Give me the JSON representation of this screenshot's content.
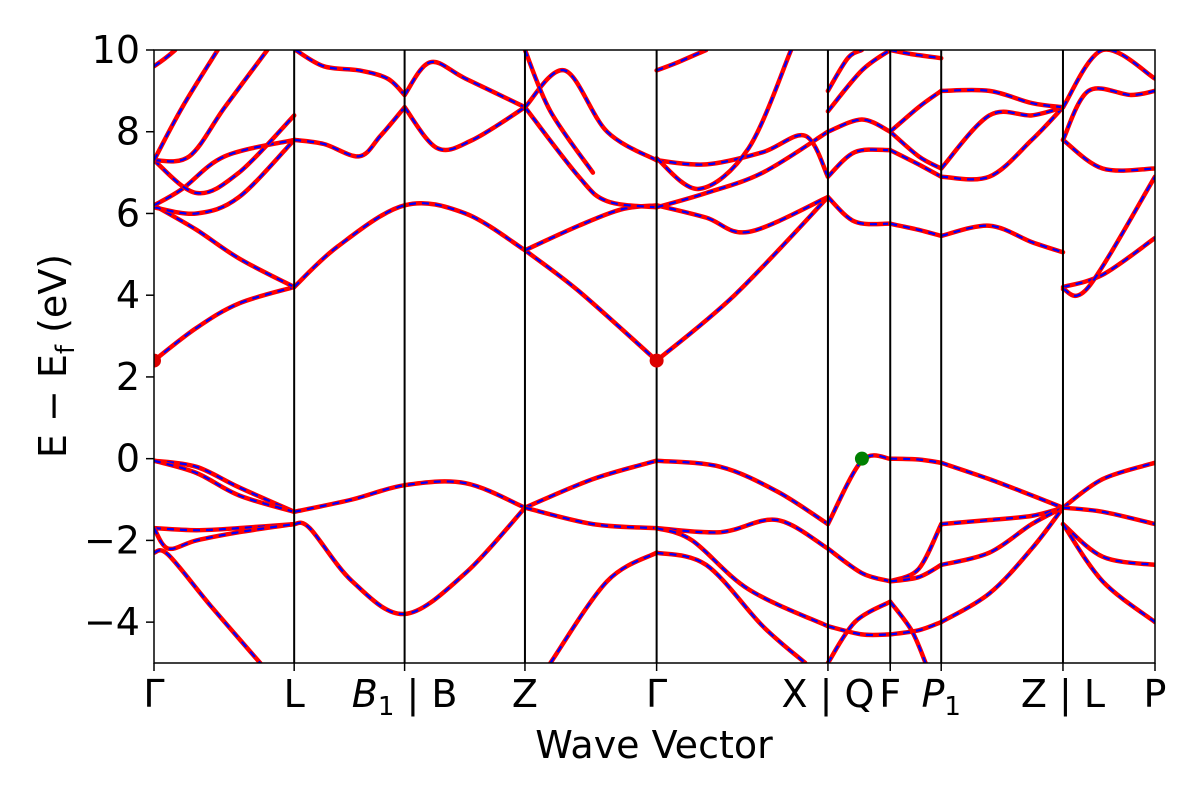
{
  "chart_data": {
    "type": "line",
    "title": "",
    "xlabel": "Wave Vector",
    "ylabel": "E − E",
    "ylabel_sub": "f",
    "ylabel_suffix": " (eV)",
    "ylim": [
      -5,
      10
    ],
    "yticks": [
      -4,
      -2,
      0,
      2,
      4,
      6,
      8,
      10
    ],
    "ytick_labels": [
      "−4",
      "−2",
      "0",
      "2",
      "4",
      "6",
      "8",
      "10"
    ],
    "xlim": [
      0,
      7.07
    ],
    "xticks": [
      {
        "x": 0.0,
        "label": "Γ"
      },
      {
        "x": 0.99,
        "label": "L"
      },
      {
        "x": 1.77,
        "label": "B",
        "sub": "1",
        "italic": true,
        "suffix": " | B"
      },
      {
        "x": 2.62,
        "label": "Z"
      },
      {
        "x": 3.55,
        "label": "Γ"
      },
      {
        "x": 4.76,
        "label": "X | Q"
      },
      {
        "x": 5.2,
        "label": "F"
      },
      {
        "x": 5.56,
        "label": "P",
        "sub": "1",
        "italic": true
      },
      {
        "x": 6.42,
        "label": "Z | L"
      },
      {
        "x": 7.07,
        "label": "P"
      }
    ],
    "grid": false,
    "colors": {
      "band_solid": "#ff0000",
      "band_dash": "#0000ff",
      "cbm_marker": "#dd0000",
      "vbm_marker": "#008000",
      "vline": "#000000"
    },
    "markers": [
      {
        "name": "CBM",
        "x": 0.0,
        "y": 2.4,
        "color": "#dd0000"
      },
      {
        "name": "CBM",
        "x": 3.55,
        "y": 2.4,
        "color": "#dd0000"
      },
      {
        "name": "VBM",
        "x": 5.0,
        "y": 0.0,
        "color": "#008000"
      }
    ],
    "series": [
      {
        "x": [
          0,
          0.3,
          0.6,
          0.99
        ],
        "y": [
          2.4,
          3.2,
          3.8,
          4.2
        ]
      },
      {
        "x": [
          0,
          0.3,
          0.6,
          0.99
        ],
        "y": [
          6.2,
          5.6,
          4.9,
          4.2
        ]
      },
      {
        "x": [
          0,
          0.3,
          0.6,
          0.99
        ],
        "y": [
          6.15,
          6.0,
          6.4,
          7.8
        ]
      },
      {
        "x": [
          0,
          0.2,
          0.5,
          0.99
        ],
        "y": [
          6.2,
          6.6,
          7.4,
          7.8
        ]
      },
      {
        "x": [
          0,
          0.3,
          0.6,
          0.99
        ],
        "y": [
          7.3,
          6.5,
          7.0,
          8.4
        ]
      },
      {
        "x": [
          0,
          0.25,
          0.5,
          0.8
        ],
        "y": [
          7.3,
          7.4,
          8.6,
          10.0
        ]
      },
      {
        "x": [
          0,
          0.2,
          0.45
        ],
        "y": [
          7.3,
          8.6,
          10.0
        ]
      },
      {
        "x": [
          0,
          0.08,
          0.15
        ],
        "y": [
          9.6,
          9.8,
          10.0
        ]
      },
      {
        "x": [
          0,
          0.3,
          0.6,
          0.99
        ],
        "y": [
          -0.05,
          -0.2,
          -0.7,
          -1.3
        ]
      },
      {
        "x": [
          0,
          0.3,
          0.6,
          0.99
        ],
        "y": [
          -0.05,
          -0.35,
          -0.9,
          -1.3
        ]
      },
      {
        "x": [
          0,
          0.3,
          0.6,
          0.99
        ],
        "y": [
          -1.7,
          -1.75,
          -1.7,
          -1.6
        ]
      },
      {
        "x": [
          0,
          0.1,
          0.3,
          0.6,
          0.99
        ],
        "y": [
          -1.7,
          -2.2,
          -2.0,
          -1.8,
          -1.6
        ]
      },
      {
        "x": [
          0,
          0.1,
          0.4,
          0.75
        ],
        "y": [
          -2.3,
          -2.35,
          -3.6,
          -5.0
        ]
      },
      {
        "x": [
          0.99,
          1.3,
          1.77,
          2.2,
          2.62
        ],
        "y": [
          4.2,
          5.2,
          6.2,
          6.0,
          5.1
        ]
      },
      {
        "x": [
          0.99,
          1.2,
          1.45,
          1.6,
          1.77
        ],
        "y": [
          7.8,
          7.7,
          7.4,
          7.9,
          8.6
        ]
      },
      {
        "x": [
          1.77,
          2.0,
          2.25,
          2.62
        ],
        "y": [
          8.6,
          7.6,
          7.8,
          8.6
        ]
      },
      {
        "x": [
          1.0,
          1.2,
          1.45,
          1.65,
          1.77
        ],
        "y": [
          10.0,
          9.6,
          9.5,
          9.3,
          8.9
        ]
      },
      {
        "x": [
          1.77,
          1.95,
          2.2,
          2.62
        ],
        "y": [
          8.9,
          9.7,
          9.3,
          8.6
        ]
      },
      {
        "x": [
          0.99,
          1.4,
          1.77,
          2.2,
          2.62
        ],
        "y": [
          -1.3,
          -1.0,
          -0.65,
          -0.6,
          -1.2
        ]
      },
      {
        "x": [
          0.99,
          1.1,
          1.4,
          1.77,
          2.2,
          2.62
        ],
        "y": [
          -1.6,
          -1.7,
          -3.0,
          -3.8,
          -2.8,
          -1.2
        ]
      },
      {
        "x": [
          2.62,
          3.0,
          3.55
        ],
        "y": [
          5.1,
          4.1,
          2.4
        ]
      },
      {
        "x": [
          2.62,
          3.0,
          3.3,
          3.55
        ],
        "y": [
          5.1,
          5.7,
          6.1,
          6.2
        ]
      },
      {
        "x": [
          2.62,
          3.0,
          3.2,
          3.55
        ],
        "y": [
          8.6,
          6.9,
          6.3,
          6.15
        ]
      },
      {
        "x": [
          2.62,
          2.9,
          3.2,
          3.55
        ],
        "y": [
          8.6,
          9.5,
          8.0,
          7.3
        ]
      },
      {
        "x": [
          2.62,
          2.8,
          3.1
        ],
        "y": [
          10.0,
          8.5,
          7.0
        ]
      },
      {
        "x": [
          2.62,
          3.1,
          3.55
        ],
        "y": [
          -1.2,
          -0.5,
          -0.05
        ]
      },
      {
        "x": [
          2.62,
          3.1,
          3.55
        ],
        "y": [
          -1.2,
          -1.6,
          -1.7
        ]
      },
      {
        "x": [
          2.8,
          3.2,
          3.55
        ],
        "y": [
          -5.0,
          -3.0,
          -2.3
        ]
      },
      {
        "x": [
          3.55,
          4.1,
          4.76
        ],
        "y": [
          2.4,
          4.0,
          6.4
        ]
      },
      {
        "x": [
          3.55,
          3.9,
          4.2,
          4.76
        ],
        "y": [
          6.2,
          5.9,
          5.55,
          6.4
        ]
      },
      {
        "x": [
          3.55,
          3.9,
          4.3,
          4.76
        ],
        "y": [
          6.15,
          6.5,
          7.0,
          8.0
        ]
      },
      {
        "x": [
          3.55,
          3.9,
          4.3,
          4.6,
          4.76
        ],
        "y": [
          7.3,
          7.2,
          7.5,
          7.9,
          6.9
        ]
      },
      {
        "x": [
          3.55,
          3.85,
          4.2,
          4.5
        ],
        "y": [
          7.35,
          6.6,
          7.6,
          10.0
        ]
      },
      {
        "x": [
          3.55,
          3.7,
          3.9
        ],
        "y": [
          9.5,
          9.7,
          10.0
        ]
      },
      {
        "x": [
          3.55,
          4.0,
          4.4,
          4.76
        ],
        "y": [
          -0.05,
          -0.2,
          -0.8,
          -1.6
        ]
      },
      {
        "x": [
          3.55,
          4.0,
          4.4,
          4.76
        ],
        "y": [
          -1.7,
          -1.8,
          -1.5,
          -2.2
        ]
      },
      {
        "x": [
          3.55,
          3.8,
          4.2,
          4.76
        ],
        "y": [
          -1.7,
          -2.0,
          -3.2,
          -4.1
        ]
      },
      {
        "x": [
          3.55,
          3.9,
          4.3,
          4.6
        ],
        "y": [
          -2.3,
          -2.6,
          -4.1,
          -5.0
        ]
      },
      {
        "x": [
          4.76,
          4.95,
          5.2
        ],
        "y": [
          6.4,
          5.8,
          5.75
        ]
      },
      {
        "x": [
          4.76,
          4.95,
          5.2
        ],
        "y": [
          6.9,
          7.5,
          7.55
        ]
      },
      {
        "x": [
          4.76,
          5.0,
          5.2
        ],
        "y": [
          8.0,
          8.3,
          8.0
        ]
      },
      {
        "x": [
          4.76,
          5.0,
          5.2
        ],
        "y": [
          8.5,
          9.5,
          10.0
        ]
      },
      {
        "x": [
          4.76,
          4.9,
          5.0
        ],
        "y": [
          9.0,
          9.8,
          10.0
        ]
      },
      {
        "x": [
          4.76,
          5.0,
          5.2
        ],
        "y": [
          -1.6,
          -0.05,
          0.0
        ]
      },
      {
        "x": [
          4.76,
          5.0,
          5.2
        ],
        "y": [
          -2.2,
          -2.8,
          -3.0
        ]
      },
      {
        "x": [
          4.76,
          5.0,
          5.2
        ],
        "y": [
          -4.1,
          -4.3,
          -4.3
        ]
      },
      {
        "x": [
          4.76,
          4.95,
          5.2
        ],
        "y": [
          -5.0,
          -4.0,
          -3.5
        ]
      },
      {
        "x": [
          5.2,
          5.4,
          5.56
        ],
        "y": [
          5.75,
          5.6,
          5.45
        ]
      },
      {
        "x": [
          5.2,
          5.4,
          5.56
        ],
        "y": [
          7.55,
          7.2,
          6.9
        ]
      },
      {
        "x": [
          5.2,
          5.4,
          5.56
        ],
        "y": [
          8.0,
          7.4,
          7.1
        ]
      },
      {
        "x": [
          5.2,
          5.4,
          5.56
        ],
        "y": [
          8.0,
          8.6,
          9.0
        ]
      },
      {
        "x": [
          5.2,
          5.35,
          5.56
        ],
        "y": [
          10.0,
          9.9,
          9.8
        ]
      },
      {
        "x": [
          5.2,
          5.4,
          5.56
        ],
        "y": [
          0.0,
          -0.02,
          -0.1
        ]
      },
      {
        "x": [
          5.2,
          5.4,
          5.56
        ],
        "y": [
          -3.0,
          -2.7,
          -1.6
        ]
      },
      {
        "x": [
          5.2,
          5.4,
          5.56
        ],
        "y": [
          -3.0,
          -2.9,
          -2.6
        ]
      },
      {
        "x": [
          5.2,
          5.4,
          5.56
        ],
        "y": [
          -4.3,
          -4.2,
          -4.0
        ]
      },
      {
        "x": [
          5.2,
          5.35,
          5.45
        ],
        "y": [
          -3.5,
          -4.2,
          -5.0
        ]
      },
      {
        "x": [
          5.56,
          5.9,
          6.2,
          6.42
        ],
        "y": [
          5.45,
          5.7,
          5.3,
          5.05
        ]
      },
      {
        "x": [
          5.56,
          5.9,
          6.2,
          6.42
        ],
        "y": [
          6.9,
          6.9,
          7.8,
          8.6
        ]
      },
      {
        "x": [
          5.56,
          5.9,
          6.2,
          6.42
        ],
        "y": [
          7.1,
          8.4,
          8.4,
          8.6
        ]
      },
      {
        "x": [
          5.56,
          5.9,
          6.2,
          6.42
        ],
        "y": [
          9.0,
          9.0,
          8.7,
          8.6
        ]
      },
      {
        "x": [
          5.56,
          5.9,
          6.2,
          6.42
        ],
        "y": [
          -0.1,
          -0.5,
          -0.9,
          -1.2
        ]
      },
      {
        "x": [
          5.56,
          5.9,
          6.2,
          6.42
        ],
        "y": [
          -1.6,
          -1.5,
          -1.4,
          -1.2
        ]
      },
      {
        "x": [
          5.56,
          5.9,
          6.2,
          6.42
        ],
        "y": [
          -2.6,
          -2.3,
          -1.6,
          -1.2
        ]
      },
      {
        "x": [
          5.56,
          5.9,
          6.2,
          6.42
        ],
        "y": [
          -4.0,
          -3.3,
          -2.2,
          -1.2
        ]
      },
      {
        "x": [
          6.42,
          6.7,
          7.07
        ],
        "y": [
          4.2,
          4.5,
          5.4
        ]
      },
      {
        "x": [
          6.42,
          6.6,
          7.07
        ],
        "y": [
          4.15,
          4.2,
          6.9
        ]
      },
      {
        "x": [
          6.42,
          6.7,
          7.07
        ],
        "y": [
          7.8,
          7.1,
          7.1
        ]
      },
      {
        "x": [
          6.42,
          6.6,
          6.9,
          7.07
        ],
        "y": [
          7.8,
          9.0,
          8.9,
          9.0
        ]
      },
      {
        "x": [
          6.42,
          6.7,
          7.07
        ],
        "y": [
          8.6,
          10.0,
          9.3
        ]
      },
      {
        "x": [
          6.42,
          6.7,
          7.07
        ],
        "y": [
          -1.2,
          -0.5,
          -0.1
        ]
      },
      {
        "x": [
          6.42,
          6.7,
          7.07
        ],
        "y": [
          -1.2,
          -1.3,
          -1.6
        ]
      },
      {
        "x": [
          6.42,
          6.7,
          7.07
        ],
        "y": [
          -1.6,
          -2.4,
          -2.6
        ]
      },
      {
        "x": [
          6.42,
          6.7,
          7.07
        ],
        "y": [
          -1.6,
          -3.0,
          -4.0
        ]
      }
    ]
  }
}
